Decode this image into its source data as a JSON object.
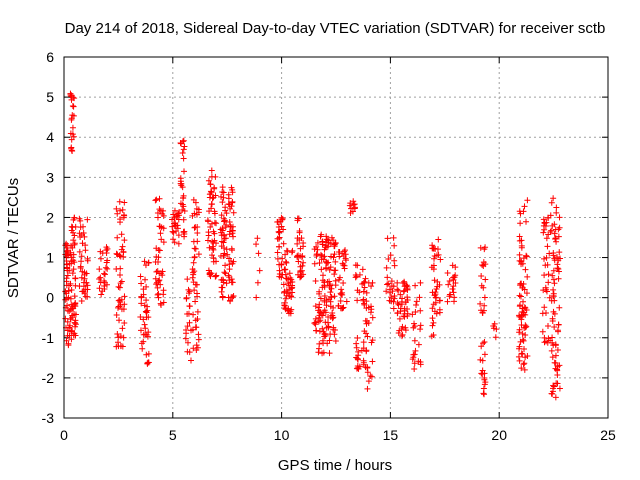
{
  "chart_data": {
    "type": "scatter",
    "title": "Day 214 of 2018, Sidereal Day-to-day VTEC variation (SDTVAR) for receiver sctb",
    "xlabel": "GPS time / hours",
    "ylabel": "SDTVAR / TECUs",
    "xlim": [
      0,
      25
    ],
    "ylim": [
      -3,
      6
    ],
    "xticks": [
      0,
      5,
      10,
      15,
      20,
      25
    ],
    "yticks": [
      -3,
      -2,
      -1,
      0,
      1,
      2,
      3,
      4,
      5,
      6
    ],
    "xtick_labels": [
      "0",
      "5",
      "10",
      "15",
      "20",
      "25"
    ],
    "ytick_labels": [
      "-3",
      "-2",
      "-1",
      "0",
      "1",
      "2",
      "3",
      "4",
      "5",
      "6"
    ],
    "grid": true,
    "marker": "+",
    "color": "#ff0000",
    "series": [
      {
        "name": "SDTVAR",
        "clusters": [
          {
            "x": [
              0.05,
              0.35
            ],
            "y": [
              -1.2,
              1.5
            ],
            "n": 60
          },
          {
            "x": [
              0.28,
              0.48
            ],
            "y": [
              3.5,
              5.1
            ],
            "n": 22
          },
          {
            "x": [
              0.35,
              0.55
            ],
            "y": [
              -1.0,
              2.0
            ],
            "n": 45
          },
          {
            "x": [
              0.7,
              1.1
            ],
            "y": [
              -0.1,
              2.0
            ],
            "n": 40
          },
          {
            "x": [
              1.6,
              2.0
            ],
            "y": [
              0.0,
              1.3
            ],
            "n": 25
          },
          {
            "x": [
              2.4,
              2.8
            ],
            "y": [
              -1.3,
              2.4
            ],
            "n": 55
          },
          {
            "x": [
              3.5,
              3.9
            ],
            "y": [
              -1.8,
              1.1
            ],
            "n": 40
          },
          {
            "x": [
              4.2,
              4.6
            ],
            "y": [
              -0.2,
              2.5
            ],
            "n": 45
          },
          {
            "x": [
              4.95,
              5.3
            ],
            "y": [
              1.3,
              2.2
            ],
            "n": 25
          },
          {
            "x": [
              5.35,
              5.55
            ],
            "y": [
              1.5,
              4.0
            ],
            "n": 30
          },
          {
            "x": [
              5.6,
              5.85
            ],
            "y": [
              -1.6,
              0.5
            ],
            "n": 20
          },
          {
            "x": [
              5.9,
              6.2
            ],
            "y": [
              -1.4,
              2.6
            ],
            "n": 45
          },
          {
            "x": [
              6.6,
              7.0
            ],
            "y": [
              0.5,
              3.2
            ],
            "n": 55
          },
          {
            "x": [
              7.2,
              7.8
            ],
            "y": [
              -0.1,
              2.8
            ],
            "n": 90
          },
          {
            "x": [
              8.8,
              9.0
            ],
            "y": [
              -0.3,
              1.6
            ],
            "n": 6
          },
          {
            "x": [
              9.8,
              10.1
            ],
            "y": [
              0.4,
              2.0
            ],
            "n": 30
          },
          {
            "x": [
              10.1,
              10.5
            ],
            "y": [
              -0.4,
              1.2
            ],
            "n": 50
          },
          {
            "x": [
              10.7,
              11.0
            ],
            "y": [
              0.5,
              2.0
            ],
            "n": 30
          },
          {
            "x": [
              11.5,
              12.5
            ],
            "y": [
              -1.4,
              1.6
            ],
            "n": 140
          },
          {
            "x": [
              12.6,
              13.0
            ],
            "y": [
              -0.3,
              1.2
            ],
            "n": 30
          },
          {
            "x": [
              13.1,
              13.4
            ],
            "y": [
              2.1,
              2.5
            ],
            "n": 10
          },
          {
            "x": [
              13.4,
              13.8
            ],
            "y": [
              -1.8,
              1.0
            ],
            "n": 35
          },
          {
            "x": [
              13.8,
              14.2
            ],
            "y": [
              -2.3,
              0.5
            ],
            "n": 35
          },
          {
            "x": [
              14.8,
              15.2
            ],
            "y": [
              -0.3,
              1.6
            ],
            "n": 25
          },
          {
            "x": [
              15.3,
              15.8
            ],
            "y": [
              -1.0,
              0.5
            ],
            "n": 45
          },
          {
            "x": [
              16.0,
              16.4
            ],
            "y": [
              -1.9,
              0.4
            ],
            "n": 25
          },
          {
            "x": [
              16.9,
              17.3
            ],
            "y": [
              -1.0,
              1.5
            ],
            "n": 40
          },
          {
            "x": [
              17.6,
              18.0
            ],
            "y": [
              -0.2,
              0.9
            ],
            "n": 20
          },
          {
            "x": [
              19.1,
              19.4
            ],
            "y": [
              -2.5,
              1.3
            ],
            "n": 35
          },
          {
            "x": [
              19.7,
              19.9
            ],
            "y": [
              -1.2,
              -0.6
            ],
            "n": 5
          },
          {
            "x": [
              20.9,
              21.3
            ],
            "y": [
              -1.8,
              2.5
            ],
            "n": 75
          },
          {
            "x": [
              22.0,
              22.4
            ],
            "y": [
              -1.2,
              2.2
            ],
            "n": 40
          },
          {
            "x": [
              22.4,
              22.8
            ],
            "y": [
              -2.5,
              2.5
            ],
            "n": 75
          }
        ]
      }
    ]
  }
}
